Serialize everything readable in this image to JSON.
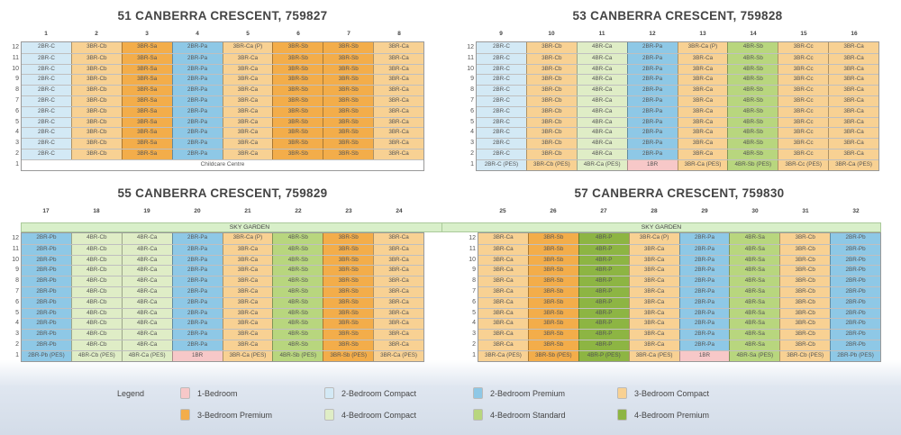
{
  "colors": {
    "1BR": "#f7c8c8",
    "2BR-C": "#d3e9f5",
    "2BR-P": "#8ec8e6",
    "3BR-C": "#f8d193",
    "3BR-P": "#f3ad4a",
    "4BR-C": "#dfedc6",
    "4BR-S": "#b8d67e",
    "4BR-P": "#8db543",
    "sky": "#d8efc9"
  },
  "floors": [
    "12",
    "11",
    "10",
    "9",
    "8",
    "7",
    "6",
    "5",
    "4",
    "3",
    "2",
    "1"
  ],
  "blocks": [
    {
      "title": "51 CANBERRA CRESCENT, 759827",
      "sky_garden": null,
      "ground_full": "Childcare Centre",
      "stacks": [
        {
          "no": "1",
          "cat": "2BR-C",
          "top": "2BR-C",
          "body": "2BR-C"
        },
        {
          "no": "2",
          "cat": "3BR-C",
          "top": "3BR-Cb",
          "body": "3BR-Cb"
        },
        {
          "no": "3",
          "cat": "3BR-P",
          "top": "3BR-Sa",
          "body": "3BR-Sa"
        },
        {
          "no": "4",
          "cat": "2BR-P",
          "top": "2BR-Pa",
          "body": "2BR-Pa"
        },
        {
          "no": "5",
          "cat": "3BR-C",
          "top": "3BR-Ca (P)",
          "body": "3BR-Ca"
        },
        {
          "no": "6",
          "cat": "3BR-P",
          "top": "3BR-Sb",
          "body": "3BR-Sb"
        },
        {
          "no": "7",
          "cat": "3BR-P",
          "top": "3BR-Sb",
          "body": "3BR-Sb"
        },
        {
          "no": "8",
          "cat": "3BR-C",
          "top": "3BR-Ca",
          "body": "3BR-Ca"
        }
      ]
    },
    {
      "title": "53 CANBERRA CRESCENT, 759828",
      "sky_garden": null,
      "ground_full": null,
      "stacks": [
        {
          "no": "9",
          "cat": "2BR-C",
          "top": "2BR-C",
          "body": "2BR-C",
          "ground": "2BR-C (PES)"
        },
        {
          "no": "10",
          "cat": "3BR-C",
          "top": "3BR-Cb",
          "body": "3BR-Cb",
          "ground": "3BR-Cb (PES)"
        },
        {
          "no": "11",
          "cat": "4BR-C",
          "top": "4BR-Ca",
          "body": "4BR-Ca",
          "ground": "4BR-Ca (PES)"
        },
        {
          "no": "12",
          "cat": "2BR-P",
          "top": "2BR-Pa",
          "body": "2BR-Pa",
          "ground": "1BR",
          "ground_cat": "1BR"
        },
        {
          "no": "13",
          "cat": "3BR-C",
          "top": "3BR-Ca (P)",
          "body": "3BR-Ca",
          "ground": "3BR-Ca (PES)"
        },
        {
          "no": "14",
          "cat": "4BR-S",
          "top": "4BR-Sb",
          "body": "4BR-Sb",
          "ground": "4BR-Sb (PES)"
        },
        {
          "no": "15",
          "cat": "3BR-C",
          "top": "3BR-Cc",
          "body": "3BR-Cc",
          "ground": "3BR-Cc (PES)"
        },
        {
          "no": "16",
          "cat": "3BR-C",
          "top": "3BR-Ca",
          "body": "3BR-Ca",
          "ground": "3BR-Ca (PES)"
        }
      ]
    },
    {
      "title": "55 CANBERRA CRESCENT, 759829",
      "sky_garden": "SKY GARDEN",
      "ground_full": null,
      "stacks": [
        {
          "no": "17",
          "cat": "2BR-P",
          "top": "2BR-Pb",
          "body": "2BR-Pb",
          "ground": "2BR-Pb (PES)"
        },
        {
          "no": "18",
          "cat": "4BR-C",
          "top": "4BR-Cb",
          "body": "4BR-Cb",
          "ground": "4BR-Cb (PES)"
        },
        {
          "no": "19",
          "cat": "4BR-C",
          "top": "4BR-Ca",
          "body": "4BR-Ca",
          "ground": "4BR-Ca (PES)"
        },
        {
          "no": "20",
          "cat": "2BR-P",
          "top": "2BR-Pa",
          "body": "2BR-Pa",
          "ground": "1BR",
          "ground_cat": "1BR"
        },
        {
          "no": "21",
          "cat": "3BR-C",
          "top": "3BR-Ca (P)",
          "body": "3BR-Ca",
          "ground": "3BR-Ca (PES)"
        },
        {
          "no": "22",
          "cat": "4BR-S",
          "top": "4BR-Sb",
          "body": "4BR-Sb",
          "ground": "4BR-Sb (PES)"
        },
        {
          "no": "23",
          "cat": "3BR-P",
          "top": "3BR-Sb",
          "body": "3BR-Sb",
          "ground": "3BR-Sb (PES)"
        },
        {
          "no": "24",
          "cat": "3BR-C",
          "top": "3BR-Ca",
          "body": "3BR-Ca",
          "ground": "3BR-Ca (PES)"
        }
      ]
    },
    {
      "title": "57 CANBERRA CRESCENT, 759830",
      "sky_garden": "SKY GARDEN",
      "ground_full": null,
      "stacks": [
        {
          "no": "25",
          "cat": "3BR-C",
          "top": "3BR-Ca",
          "body": "3BR-Ca",
          "ground": "3BR-Ca (PES)"
        },
        {
          "no": "26",
          "cat": "3BR-P",
          "top": "3BR-Sb",
          "body": "3BR-Sb",
          "ground": "3BR-Sb (PES)"
        },
        {
          "no": "27",
          "cat": "4BR-P",
          "top": "4BR-P",
          "body": "4BR-P",
          "ground": "4BR-P (PES)"
        },
        {
          "no": "28",
          "cat": "3BR-C",
          "top": "3BR-Ca (P)",
          "body": "3BR-Ca",
          "ground": "3BR-Ca (PES)"
        },
        {
          "no": "29",
          "cat": "2BR-P",
          "top": "2BR-Pa",
          "body": "2BR-Pa",
          "ground": "1BR",
          "ground_cat": "1BR"
        },
        {
          "no": "30",
          "cat": "4BR-S",
          "top": "4BR-Sa",
          "body": "4BR-Sa",
          "ground": "4BR-Sa (PES)"
        },
        {
          "no": "31",
          "cat": "3BR-C",
          "top": "3BR-Cb",
          "body": "3BR-Cb",
          "ground": "3BR-Cb (PES)"
        },
        {
          "no": "32",
          "cat": "2BR-P",
          "top": "2BR-Pb",
          "body": "2BR-Pb",
          "ground": "2BR-Pb (PES)"
        }
      ]
    }
  ],
  "legend": {
    "title": "Legend",
    "items": [
      {
        "cat": "1BR",
        "label": "1-Bedroom"
      },
      {
        "cat": "2BR-C",
        "label": "2-Bedroom Compact"
      },
      {
        "cat": "2BR-P",
        "label": "2-Bedroom Premium"
      },
      {
        "cat": "3BR-C",
        "label": "3-Bedroom Compact"
      },
      {
        "cat": "3BR-P",
        "label": "3-Bedroom Premium"
      },
      {
        "cat": "4BR-C",
        "label": "4-Bedroom Compact"
      },
      {
        "cat": "4BR-S",
        "label": "4-Bedroom Standard"
      },
      {
        "cat": "4BR-P",
        "label": "4-Bedroom Premium"
      }
    ]
  }
}
